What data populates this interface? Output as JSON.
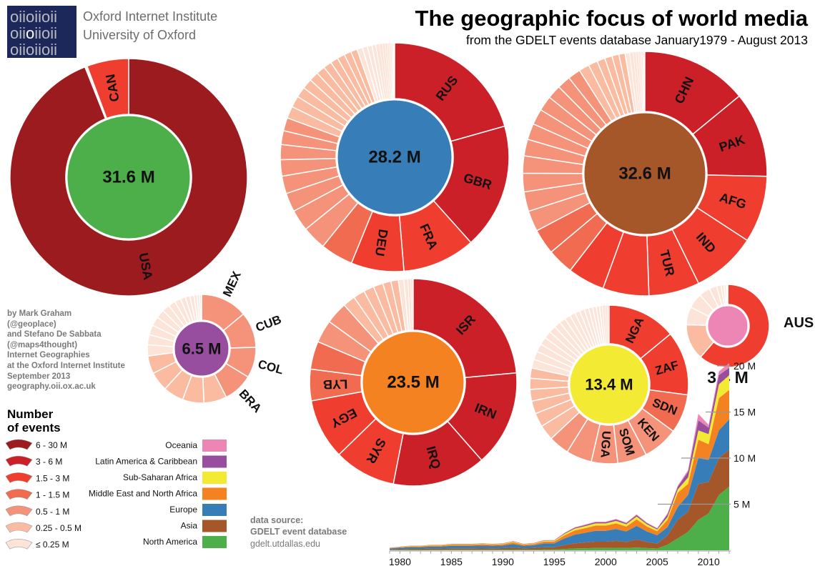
{
  "header": {
    "logo_lines": [
      "oiioiioii",
      "oiioiioii",
      "oiioiioii"
    ],
    "institute": "Oxford Internet Institute",
    "university": "University of Oxford",
    "title": "The geographic focus of world media",
    "subtitle": "from the GDELT events database January1979 - August 2013"
  },
  "credits": [
    "by Mark Graham",
    "(@geoplace)",
    "and Stefano De Sabbata",
    "(@maps4thought)",
    "Internet Geographies",
    "at the Oxford Internet Institute",
    "September 2013",
    "geography.oii.ox.ac.uk"
  ],
  "source": {
    "label": "data source:",
    "name": "GDELT event database",
    "url": "gdelt.utdallas.edu"
  },
  "legend": {
    "title_line1": "Number",
    "title_line2": "of events",
    "bins": [
      {
        "label": "6 - 30 M",
        "color": "#9b1b1f"
      },
      {
        "label": "3 - 6 M",
        "color": "#cb2027"
      },
      {
        "label": "1.5 - 3 M",
        "color": "#ef3e2f"
      },
      {
        "label": "1 - 1.5 M",
        "color": "#f16b50"
      },
      {
        "label": "0.5 - 1 M",
        "color": "#f4937a"
      },
      {
        "label": "0.25 - 0.5 M",
        "color": "#fbbba1"
      },
      {
        "label": "≤ 0.25 M",
        "color": "#fde4d8"
      }
    ]
  },
  "donuts": [
    {
      "total_label": "31.6 M",
      "color": "#4daf4a",
      "slices": [
        {
          "label": "USA",
          "value": 29.7
        },
        {
          "value": 0.02
        },
        {
          "value": 0.03
        },
        {
          "value": 0.05
        },
        {
          "label": "CAN",
          "value": 1.8
        }
      ]
    },
    {
      "total_label": "28.2 M",
      "color": "#377eb8",
      "slices": [
        {
          "label": "RUS",
          "value": 5.8
        },
        {
          "label": "GBR",
          "value": 5.0
        },
        {
          "label": "FRA",
          "value": 2.9
        },
        {
          "label": "DEU",
          "value": 2.1
        },
        {
          "value": 1.3
        },
        {
          "value": 0.95
        },
        {
          "value": 0.85
        },
        {
          "value": 0.75
        },
        {
          "value": 0.7
        },
        {
          "value": 0.65
        },
        {
          "value": 0.6
        },
        {
          "value": 0.55
        },
        {
          "value": 0.52
        },
        {
          "value": 0.48
        },
        {
          "value": 0.45
        },
        {
          "value": 0.42
        },
        {
          "value": 0.4
        },
        {
          "value": 0.38
        },
        {
          "value": 0.35
        },
        {
          "value": 0.33
        },
        {
          "value": 0.31
        },
        {
          "value": 0.3
        },
        {
          "value": 0.28
        },
        {
          "value": 0.26
        },
        {
          "value": 0.22
        },
        {
          "value": 0.2
        },
        {
          "value": 0.18
        },
        {
          "value": 0.16
        },
        {
          "value": 0.14
        },
        {
          "value": 0.12
        },
        {
          "value": 0.1
        },
        {
          "value": 0.08
        },
        {
          "value": 0.07
        },
        {
          "value": 0.06
        },
        {
          "value": 0.05
        },
        {
          "value": 0.04
        },
        {
          "value": 0.03
        },
        {
          "value": 0.02
        },
        {
          "value": 0.02
        },
        {
          "value": 0.01
        }
      ]
    },
    {
      "total_label": "32.6 M",
      "color": "#a6572a",
      "slices": [
        {
          "label": "CHN",
          "value": 4.6
        },
        {
          "label": "PAK",
          "value": 3.7
        },
        {
          "label": "AFG",
          "value": 2.9
        },
        {
          "label": "IND",
          "value": 2.8
        },
        {
          "label": "TUR",
          "value": 2.2
        },
        {
          "value": 2.0
        },
        {
          "value": 1.6
        },
        {
          "value": 1.13
        },
        {
          "value": 1.1
        },
        {
          "value": 0.9
        },
        {
          "value": 0.85
        },
        {
          "value": 0.8
        },
        {
          "value": 0.75
        },
        {
          "value": 0.72
        },
        {
          "value": 0.7
        },
        {
          "value": 0.68
        },
        {
          "value": 0.65
        },
        {
          "value": 0.6
        },
        {
          "value": 0.58
        },
        {
          "value": 0.55
        },
        {
          "value": 0.45
        },
        {
          "value": 0.4
        },
        {
          "value": 0.35
        },
        {
          "value": 0.32
        },
        {
          "value": 0.3
        },
        {
          "value": 0.27
        },
        {
          "value": 0.2
        },
        {
          "value": 0.15
        },
        {
          "value": 0.12
        },
        {
          "value": 0.1
        },
        {
          "value": 0.08
        },
        {
          "value": 0.06
        },
        {
          "value": 0.05
        },
        {
          "value": 0.04
        },
        {
          "value": 0.03
        },
        {
          "value": 0.02
        }
      ]
    },
    {
      "total_label": "6.5 M",
      "color": "#974e9f",
      "slices": [
        {
          "label": "MEX",
          "value": 0.92
        },
        {
          "label": "CUB",
          "value": 0.7
        },
        {
          "label": "COL",
          "value": 0.6
        },
        {
          "label": "BRA",
          "value": 0.58
        },
        {
          "value": 0.45
        },
        {
          "value": 0.42
        },
        {
          "value": 0.4
        },
        {
          "value": 0.38
        },
        {
          "value": 0.35
        },
        {
          "value": 0.22
        },
        {
          "value": 0.2
        },
        {
          "value": 0.19
        },
        {
          "value": 0.18
        },
        {
          "value": 0.17
        },
        {
          "value": 0.15
        },
        {
          "value": 0.14
        },
        {
          "value": 0.12
        },
        {
          "value": 0.1
        },
        {
          "value": 0.09
        },
        {
          "value": 0.08
        },
        {
          "value": 0.06
        },
        {
          "value": 0.05
        },
        {
          "value": 0.04
        }
      ]
    },
    {
      "total_label": "23.5 M",
      "color": "#f58220",
      "slices": [
        {
          "label": "ISR",
          "value": 5.5
        },
        {
          "label": "IRN",
          "value": 3.5
        },
        {
          "label": "IRQ",
          "value": 3.4
        },
        {
          "label": "SYR",
          "value": 2.25
        },
        {
          "label": "EGY",
          "value": 2.2
        },
        {
          "label": "LYB",
          "value": 1.15
        },
        {
          "value": 1.02
        },
        {
          "value": 0.83
        },
        {
          "value": 0.8
        },
        {
          "value": 0.45
        },
        {
          "value": 0.42
        },
        {
          "value": 0.38
        },
        {
          "value": 0.35
        },
        {
          "value": 0.3
        },
        {
          "value": 0.27
        },
        {
          "value": 0.2
        },
        {
          "value": 0.15
        },
        {
          "value": 0.1
        },
        {
          "value": 0.06
        },
        {
          "value": 0.03
        }
      ]
    },
    {
      "total_label": "13.4 M",
      "color": "#f2ea33",
      "slices": [
        {
          "label": "NGA",
          "value": 1.88
        },
        {
          "label": "ZAF",
          "value": 1.75
        },
        {
          "label": "SDN",
          "value": 1.06
        },
        {
          "label": "KEN",
          "value": 0.97
        },
        {
          "label": "SOM",
          "value": 0.8
        },
        {
          "label": "UGA",
          "value": 0.72
        },
        {
          "value": 0.7
        },
        {
          "value": 0.56
        },
        {
          "value": 0.42
        },
        {
          "value": 0.38
        },
        {
          "value": 0.35
        },
        {
          "value": 0.32
        },
        {
          "value": 0.3
        },
        {
          "value": 0.28
        },
        {
          "value": 0.24
        },
        {
          "value": 0.23
        },
        {
          "value": 0.22
        },
        {
          "value": 0.21
        },
        {
          "value": 0.2
        },
        {
          "value": 0.19
        },
        {
          "value": 0.18
        },
        {
          "value": 0.17
        },
        {
          "value": 0.16
        },
        {
          "value": 0.15
        },
        {
          "value": 0.14
        },
        {
          "value": 0.13
        },
        {
          "value": 0.12
        },
        {
          "value": 0.11
        },
        {
          "value": 0.1
        },
        {
          "value": 0.09
        },
        {
          "value": 0.08
        },
        {
          "value": 0.07
        },
        {
          "value": 0.06
        },
        {
          "value": 0.05
        }
      ]
    },
    {
      "total_label": "3.4 M",
      "color": "#ee86b5",
      "slices": [
        {
          "label": "AUS",
          "value": 2.1
        },
        {
          "value": 0.48
        },
        {
          "value": 0.24
        },
        {
          "value": 0.2
        },
        {
          "value": 0.15
        },
        {
          "value": 0.1
        },
        {
          "value": 0.06
        },
        {
          "value": 0.04
        },
        {
          "value": 0.03
        },
        {
          "value": 0.02
        }
      ]
    }
  ],
  "chart_data": {
    "type": "area",
    "stacked": true,
    "x": [
      1979,
      1980,
      1981,
      1982,
      1983,
      1984,
      1985,
      1986,
      1987,
      1988,
      1989,
      1990,
      1991,
      1992,
      1993,
      1994,
      1995,
      1996,
      1997,
      1998,
      1999,
      2000,
      2001,
      2002,
      2003,
      2004,
      2005,
      2006,
      2007,
      2008,
      2009,
      2010,
      2011,
      2012
    ],
    "xticks": [
      "1980",
      "1985",
      "1990",
      "1995",
      "2000",
      "2005",
      "2010"
    ],
    "yticks": [
      {
        "value": 5,
        "label": "5 M"
      },
      {
        "value": 10,
        "label": "10 M"
      },
      {
        "value": 15,
        "label": "15 M"
      },
      {
        "value": 20,
        "label": "20 M"
      }
    ],
    "ylim": [
      0,
      20.5
    ],
    "xlim": [
      1979,
      2012
    ],
    "unit": "million events",
    "grid": false,
    "series": [
      {
        "name": "North America",
        "color": "#4daf4a",
        "values": [
          0.02,
          0.03,
          0.04,
          0.04,
          0.05,
          0.05,
          0.06,
          0.06,
          0.06,
          0.06,
          0.06,
          0.06,
          0.08,
          0.06,
          0.06,
          0.09,
          0.09,
          0.15,
          0.2,
          0.22,
          0.25,
          0.25,
          0.27,
          0.24,
          0.31,
          0.24,
          0.19,
          0.6,
          1.3,
          2.0,
          3.3,
          4.0,
          6.0,
          6.9
        ]
      },
      {
        "name": "Asia",
        "color": "#a6572a",
        "values": [
          0.07,
          0.09,
          0.11,
          0.11,
          0.13,
          0.13,
          0.15,
          0.15,
          0.15,
          0.17,
          0.15,
          0.17,
          0.22,
          0.15,
          0.18,
          0.24,
          0.24,
          0.42,
          0.55,
          0.62,
          0.68,
          0.68,
          0.75,
          0.66,
          0.86,
          0.66,
          0.53,
          1.0,
          2.0,
          2.2,
          3.9,
          3.4,
          4.0,
          4.0
        ]
      },
      {
        "name": "Europe",
        "color": "#377eb8",
        "values": [
          0.11,
          0.15,
          0.19,
          0.19,
          0.23,
          0.23,
          0.27,
          0.27,
          0.27,
          0.29,
          0.27,
          0.29,
          0.38,
          0.27,
          0.3,
          0.42,
          0.42,
          0.72,
          0.95,
          1.06,
          1.18,
          1.18,
          1.29,
          1.14,
          1.48,
          1.14,
          0.91,
          0.9,
          1.4,
          1.8,
          2.8,
          2.4,
          3.0,
          3.3
        ]
      },
      {
        "name": "Middle East and North Africa",
        "color": "#f58220",
        "values": [
          0.05,
          0.07,
          0.09,
          0.09,
          0.11,
          0.11,
          0.13,
          0.13,
          0.13,
          0.14,
          0.13,
          0.14,
          0.18,
          0.13,
          0.14,
          0.2,
          0.2,
          0.34,
          0.45,
          0.5,
          0.56,
          0.56,
          0.61,
          0.54,
          0.7,
          0.54,
          0.43,
          0.8,
          1.55,
          1.2,
          2.0,
          1.7,
          3.5,
          3.2
        ]
      },
      {
        "name": "Sub-Saharan Africa",
        "color": "#f2ea33",
        "values": [
          0.02,
          0.03,
          0.04,
          0.04,
          0.05,
          0.05,
          0.06,
          0.06,
          0.06,
          0.06,
          0.06,
          0.06,
          0.08,
          0.06,
          0.06,
          0.09,
          0.09,
          0.15,
          0.2,
          0.22,
          0.25,
          0.25,
          0.27,
          0.24,
          0.31,
          0.24,
          0.19,
          0.3,
          0.35,
          0.7,
          1.0,
          1.1,
          1.5,
          1.6
        ]
      },
      {
        "name": "Latin America & Caribbean",
        "color": "#974e9f",
        "values": [
          0.01,
          0.02,
          0.02,
          0.02,
          0.02,
          0.02,
          0.03,
          0.03,
          0.03,
          0.03,
          0.03,
          0.03,
          0.04,
          0.03,
          0.03,
          0.04,
          0.04,
          0.08,
          0.1,
          0.11,
          0.12,
          0.12,
          0.14,
          0.12,
          0.16,
          0.12,
          0.1,
          0.3,
          0.3,
          0.6,
          1.1,
          0.7,
          1.0,
          0.8
        ]
      },
      {
        "name": "Oceania",
        "color": "#ee86b5",
        "values": [
          0.01,
          0.01,
          0.01,
          0.01,
          0.01,
          0.01,
          0.01,
          0.01,
          0.01,
          0.01,
          0.01,
          0.01,
          0.02,
          0.01,
          0.02,
          0.02,
          0.02,
          0.04,
          0.05,
          0.06,
          0.06,
          0.06,
          0.07,
          0.06,
          0.08,
          0.06,
          0.05,
          0.1,
          0.1,
          0.2,
          0.7,
          0.3,
          0.4,
          0.5
        ]
      }
    ]
  }
}
